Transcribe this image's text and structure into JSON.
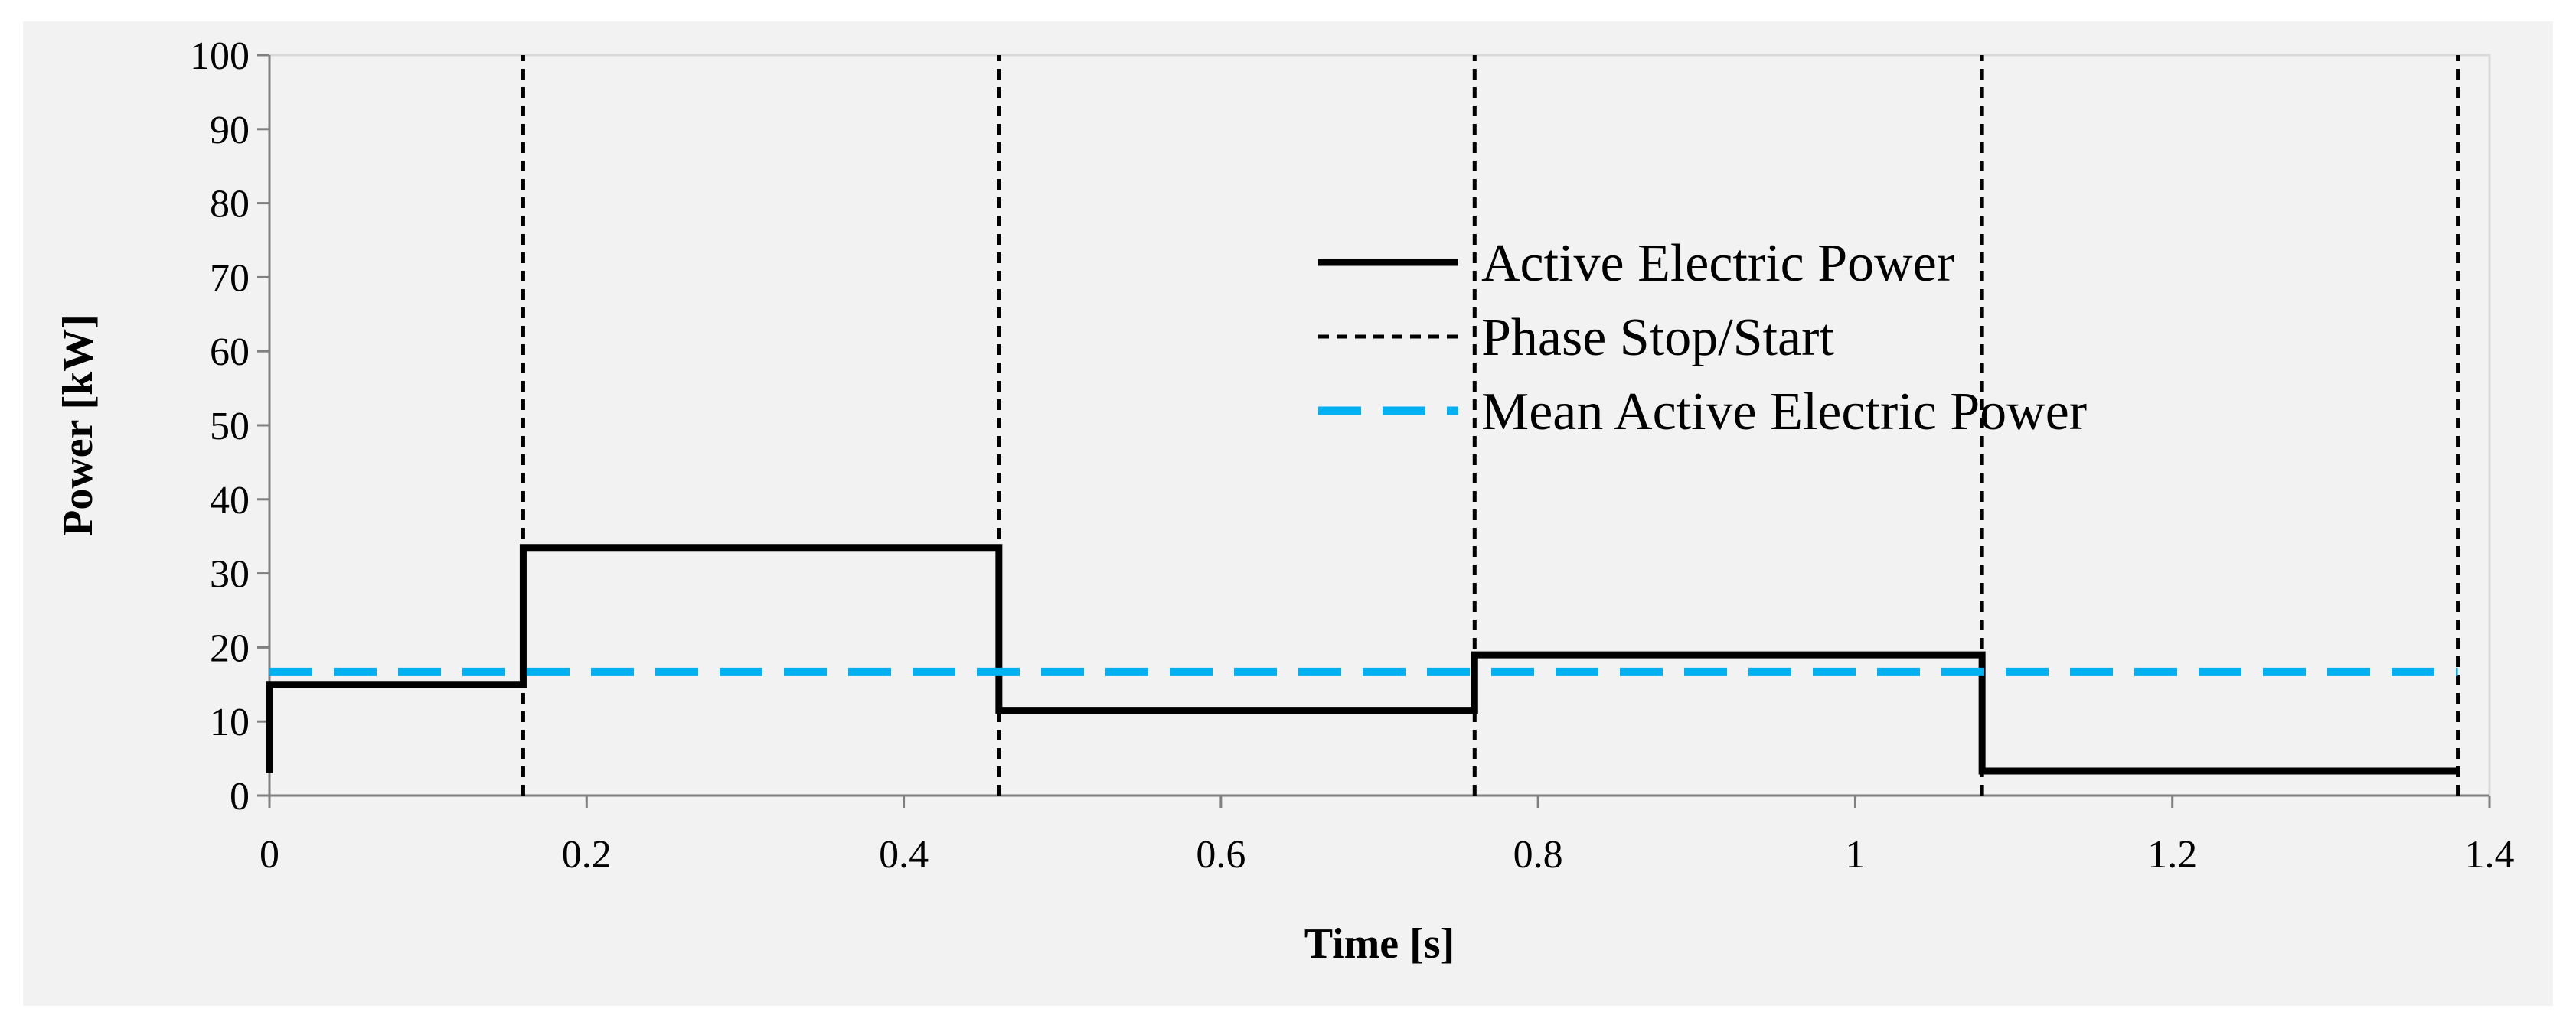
{
  "chart_data": {
    "type": "line",
    "xlabel": "Time [s]",
    "ylabel": "Power [kW]",
    "xlim": [
      0,
      1.4
    ],
    "ylim": [
      0,
      100
    ],
    "x_ticks": [
      0,
      0.2,
      0.4,
      0.6,
      0.8,
      1,
      1.2,
      1.4
    ],
    "x_tick_labels": [
      "0",
      "0.2",
      "0.4",
      "0.6",
      "0.8",
      "1",
      "1.2",
      "1.4"
    ],
    "y_ticks": [
      0,
      10,
      20,
      30,
      40,
      50,
      60,
      70,
      80,
      90,
      100
    ],
    "y_tick_labels": [
      "0",
      "10",
      "20",
      "30",
      "40",
      "50",
      "60",
      "70",
      "80",
      "90",
      "100"
    ],
    "legend_position": "upper-right",
    "series": [
      {
        "name": "Active Electric Power",
        "style": "solid",
        "color": "#000000",
        "x": [
          0,
          0,
          0.16,
          0.16,
          0.46,
          0.46,
          0.76,
          0.76,
          1.08,
          1.08,
          1.38
        ],
        "y": [
          3,
          15,
          15,
          33.5,
          33.5,
          11.5,
          11.5,
          19,
          19,
          3.3,
          3.3
        ]
      },
      {
        "name": "Phase Stop/Start",
        "style": "dotted",
        "color": "#000000",
        "x": [
          0.16,
          0.46,
          0.76,
          1.08,
          1.38
        ],
        "y_range": [
          0,
          100
        ]
      },
      {
        "name": "Mean Active Electric Power",
        "style": "dashed",
        "color": "#00b0f0",
        "x": [
          0,
          1.38
        ],
        "y": [
          16.7,
          16.7
        ]
      }
    ]
  }
}
